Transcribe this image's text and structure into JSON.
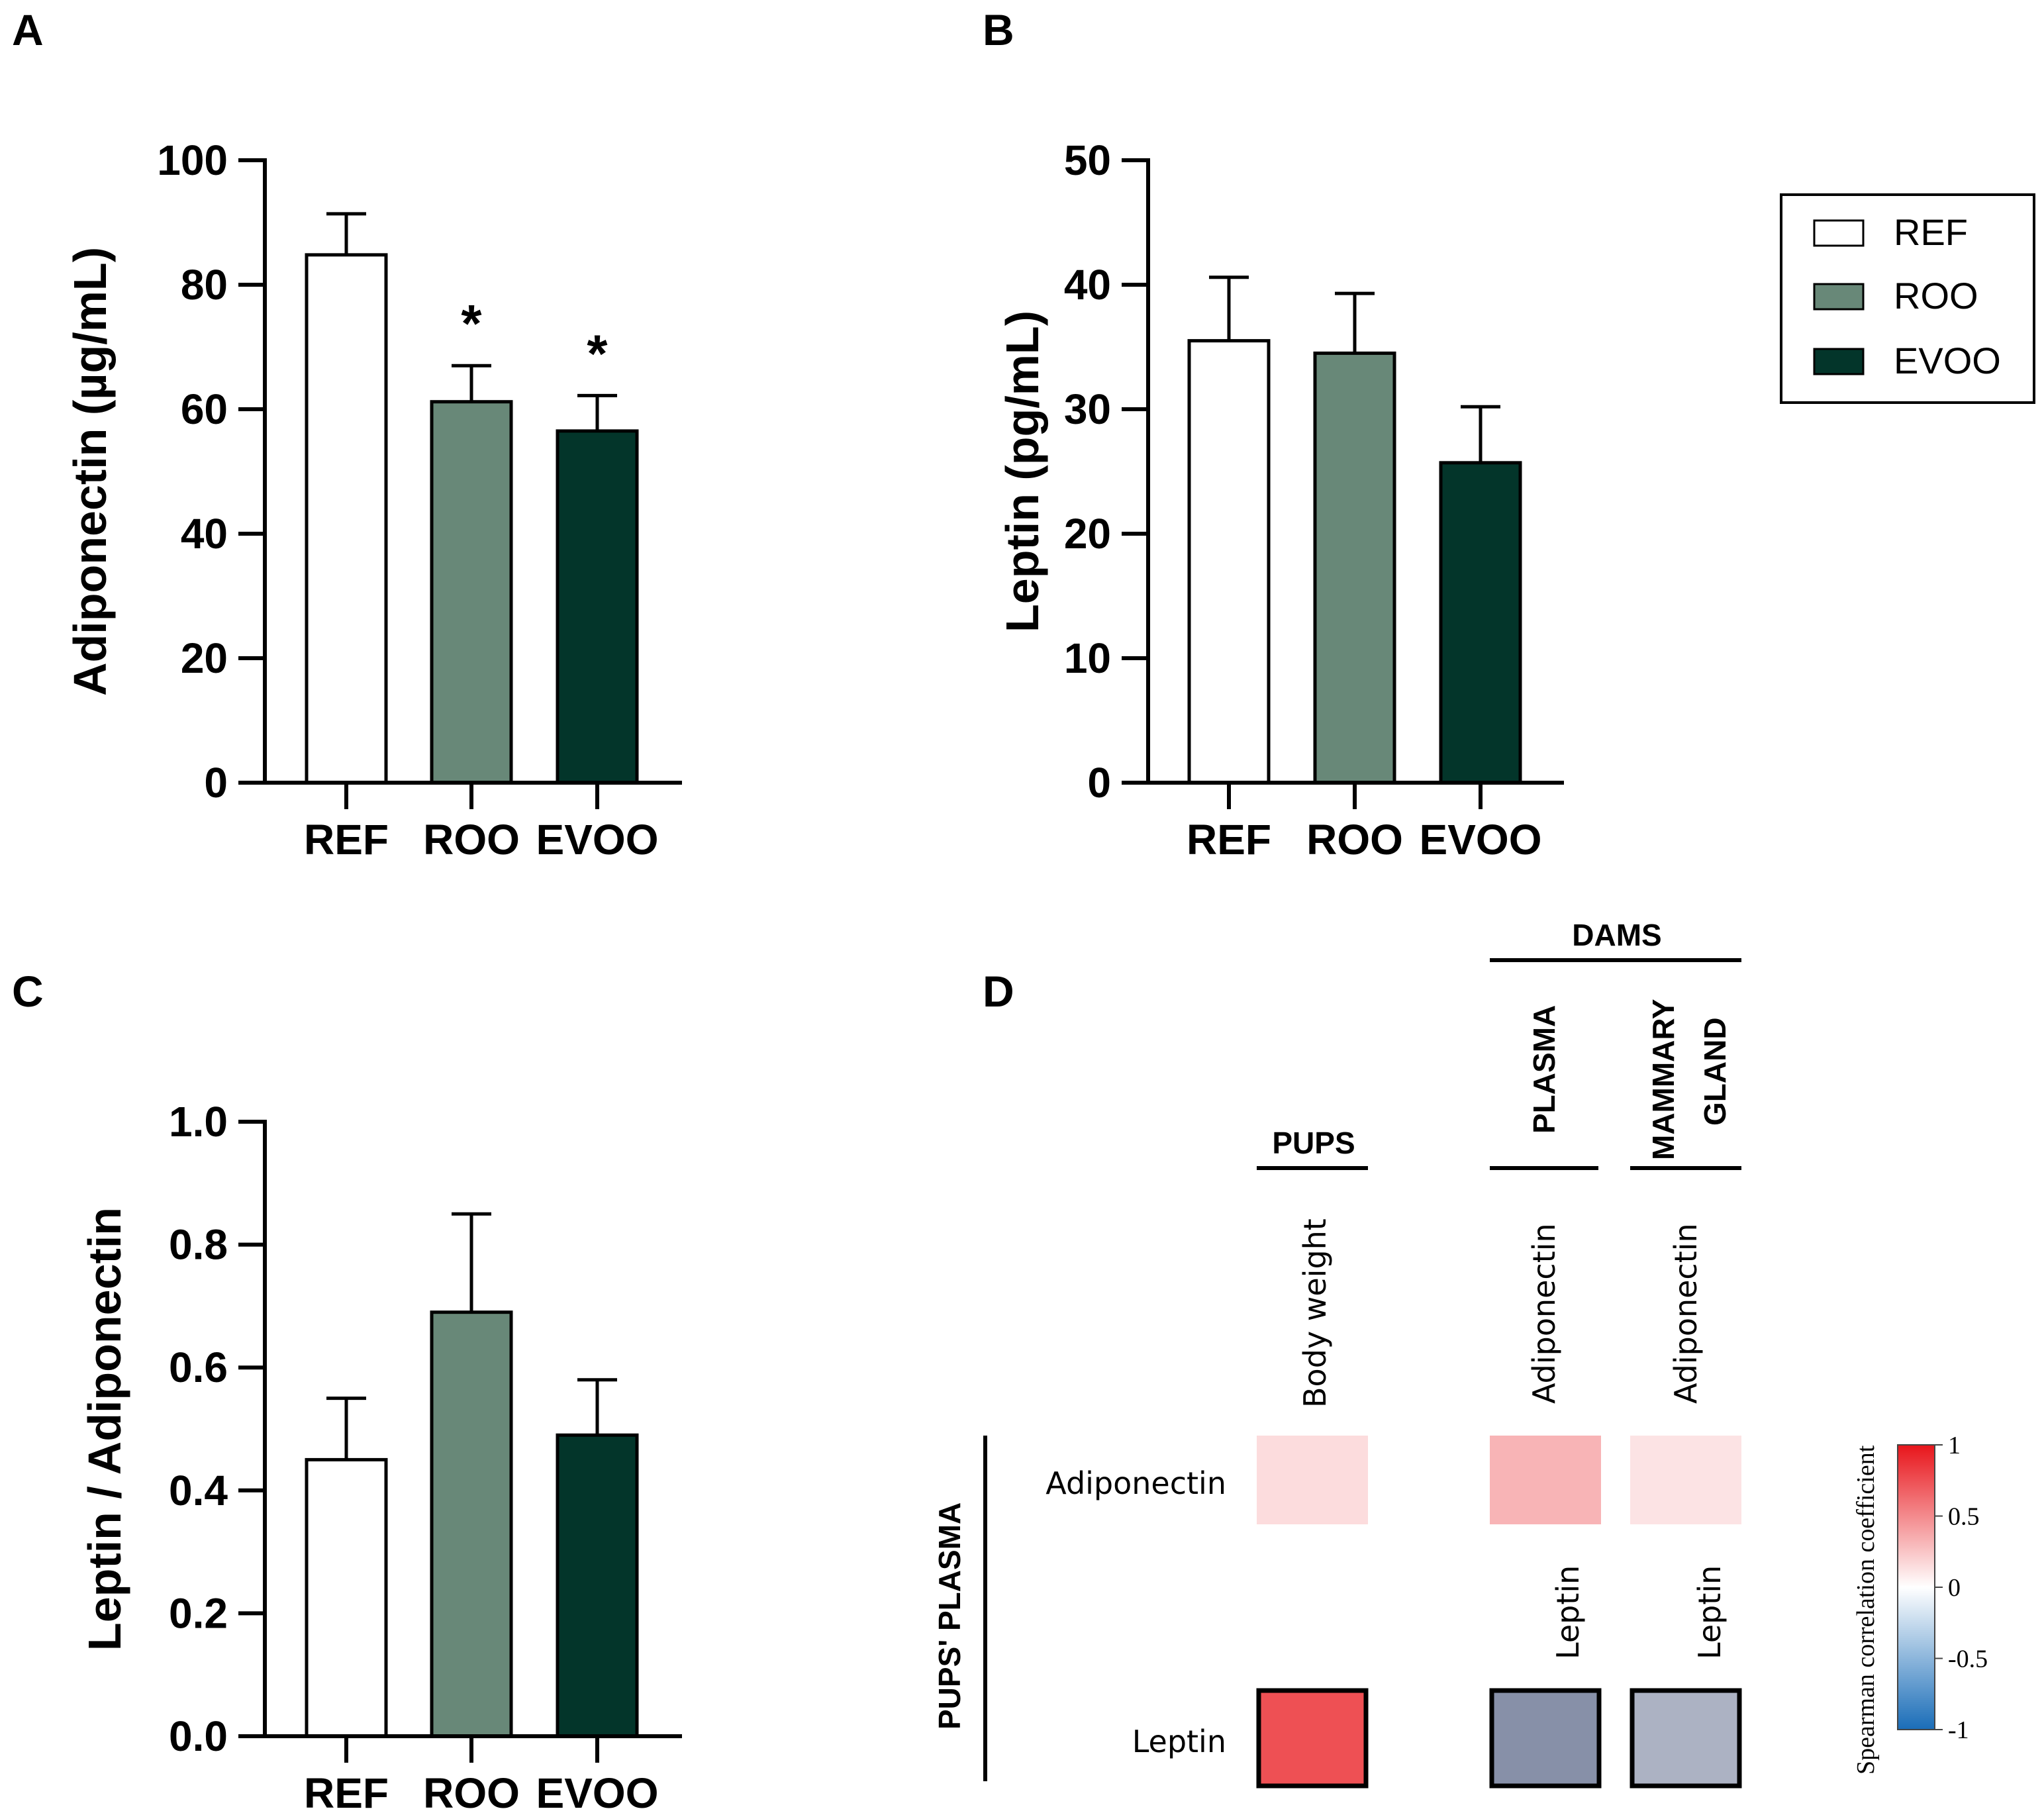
{
  "colors": {
    "REF": "#ffffff",
    "ROO": "#688878",
    "EVOO": "#03352a"
  },
  "legend": {
    "title": "",
    "items": [
      "REF",
      "ROO",
      "EVOO"
    ]
  },
  "chart_data": [
    {
      "panel": "A",
      "type": "bar",
      "categories": [
        "REF",
        "ROO",
        "EVOO"
      ],
      "values": [
        84.8,
        61.2,
        56.5
      ],
      "errors": [
        6.6,
        5.8,
        5.7
      ],
      "significance": [
        "",
        "*",
        "*"
      ],
      "ylabel": "Adiponectin (µg/mL)",
      "ylim": [
        0,
        100
      ],
      "yticks": [
        "0",
        "20",
        "40",
        "60",
        "80",
        "100"
      ],
      "ytick_values": [
        0,
        20,
        40,
        60,
        80,
        100
      ]
    },
    {
      "panel": "B",
      "type": "bar",
      "categories": [
        "REF",
        "ROO",
        "EVOO"
      ],
      "values": [
        35.5,
        34.5,
        25.7
      ],
      "errors": [
        5.1,
        4.8,
        4.5
      ],
      "significance": [
        "",
        "",
        ""
      ],
      "ylabel": "Leptin (pg/mL)",
      "ylim": [
        0,
        50
      ],
      "yticks": [
        "0",
        "10",
        "20",
        "30",
        "40",
        "50"
      ],
      "ytick_values": [
        0,
        10,
        20,
        30,
        40,
        50
      ]
    },
    {
      "panel": "C",
      "type": "bar",
      "categories": [
        "REF",
        "ROO",
        "EVOO"
      ],
      "values": [
        0.45,
        0.69,
        0.49
      ],
      "errors": [
        0.1,
        0.16,
        0.09
      ],
      "significance": [
        "",
        "",
        ""
      ],
      "ylabel": "Leptin / Adiponectin",
      "ylim": [
        0,
        1
      ],
      "yticks": [
        "0.0",
        "0.2",
        "0.4",
        "0.6",
        "0.8",
        "1.0"
      ],
      "ytick_values": [
        0,
        0.2,
        0.4,
        0.6,
        0.8,
        1.0
      ]
    },
    {
      "panel": "D",
      "type": "heatmap",
      "group_labels": {
        "pups": "PUPS",
        "dams": "DAMS",
        "plasma": "PLASMA",
        "mammary_line1": "MAMMARY",
        "mammary_line2": "GLAND",
        "row_group": "PUPS' PLASMA"
      },
      "columns": [
        "Body weight",
        "Adiponectin",
        "Adiponectin"
      ],
      "rows": [
        "Adiponectin",
        "Leptin"
      ],
      "sub_labels": [
        "Leptin",
        "Leptin"
      ],
      "values": [
        [
          0.15,
          0.32,
          0.12
        ],
        [
          0.75,
          -0.55,
          -0.38
        ]
      ],
      "highlighted": [
        [
          false,
          false,
          false
        ],
        [
          true,
          true,
          true
        ]
      ],
      "colorbar": {
        "title": "Spearman correlation coefficient",
        "ticks": [
          "1",
          "0.5",
          "0",
          "-0.5",
          "-1"
        ],
        "tick_values": [
          1,
          0.5,
          0,
          -0.5,
          -1
        ]
      }
    }
  ]
}
